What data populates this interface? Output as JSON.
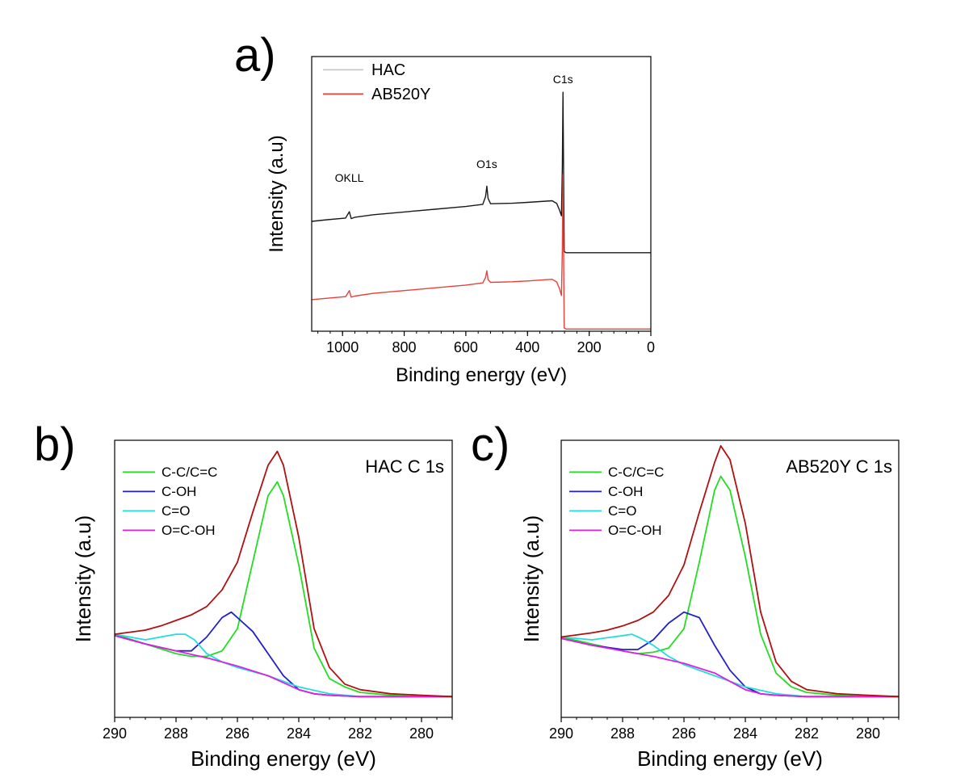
{
  "chart_data": [
    {
      "type": "line",
      "panel": "a)",
      "xlabel": "Binding energy (eV)",
      "ylabel": "Intensity (a.u)",
      "xlim": [
        1100,
        0
      ],
      "ylim": [
        0,
        100
      ],
      "x_reversed": true,
      "xticks": [
        "1000",
        "800",
        "600",
        "400",
        "200",
        "0"
      ],
      "legend": {
        "position": "top-left",
        "entries": [
          "HAC",
          "AB520Y"
        ]
      },
      "annotations": [
        {
          "text": "OKLL",
          "x": 978,
          "y": 52
        },
        {
          "text": "O1s",
          "x": 532,
          "y": 57
        },
        {
          "text": "C1s",
          "x": 285,
          "y": 88
        }
      ],
      "series": [
        {
          "name": "HAC",
          "color": "#1a1a1a",
          "x": [
            1100,
            1050,
            990,
            978,
            972,
            960,
            900,
            800,
            700,
            600,
            545,
            536,
            532,
            528,
            520,
            450,
            400,
            320,
            305,
            296,
            290,
            287,
            285,
            283,
            281,
            275,
            250,
            200,
            100,
            0
          ],
          "y": [
            40.0,
            40.6,
            41.2,
            43.5,
            41.0,
            41.5,
            42.4,
            43.4,
            44.4,
            45.4,
            46.2,
            49.0,
            52.8,
            48.4,
            46.4,
            46.6,
            46.9,
            47.5,
            46.5,
            44.0,
            42.0,
            60.0,
            87.0,
            60.0,
            29.0,
            28.6,
            28.6,
            28.6,
            28.6,
            28.6
          ]
        },
        {
          "name": "AB520Y",
          "color": "#e8413a",
          "x": [
            1100,
            1050,
            990,
            978,
            972,
            960,
            900,
            800,
            700,
            600,
            545,
            536,
            532,
            528,
            520,
            450,
            400,
            320,
            305,
            296,
            290,
            287,
            285,
            283,
            281,
            275,
            250,
            200,
            100,
            0
          ],
          "y": [
            11.5,
            12.0,
            12.6,
            14.8,
            12.4,
            12.8,
            13.8,
            14.8,
            15.8,
            16.8,
            17.6,
            19.6,
            22.0,
            18.8,
            17.8,
            18.0,
            18.3,
            18.9,
            17.9,
            15.4,
            13.0,
            30.0,
            57.0,
            30.0,
            1.2,
            0.8,
            0.8,
            0.8,
            0.8,
            0.8
          ]
        }
      ]
    },
    {
      "type": "line",
      "panel": "b)",
      "title": "HAC C 1s",
      "xlabel": "Binding energy (eV)",
      "ylabel": "Intensity (a.u)",
      "xlim": [
        290,
        279
      ],
      "ylim": [
        0,
        100
      ],
      "x_reversed": true,
      "xticks": [
        "290",
        "288",
        "286",
        "284",
        "282",
        "280"
      ],
      "legend": {
        "position": "top-left",
        "entries": [
          "C-C/C=C",
          "C-OH",
          "C=O",
          "O=C-OH"
        ]
      },
      "series": [
        {
          "name": "C-C/C=C",
          "color": "#22dd22",
          "x": [
            290,
            289,
            288,
            287.5,
            287,
            286.5,
            286,
            285.5,
            285,
            284.7,
            284.5,
            284,
            283.5,
            283,
            282.5,
            282,
            281,
            280,
            279
          ],
          "y": [
            30.0,
            26.5,
            23.0,
            22.0,
            22.0,
            24.0,
            32.0,
            56.0,
            80.0,
            85.0,
            80.0,
            55.0,
            25.0,
            14.0,
            11.0,
            9.0,
            8.0,
            7.5,
            7.5
          ]
        },
        {
          "name": "C-OH",
          "color": "#2020c8",
          "x": [
            290,
            289,
            288,
            287.5,
            287,
            286.5,
            286.2,
            286,
            285.5,
            285,
            284.5,
            284,
            283.5,
            283,
            282,
            281,
            280,
            279
          ],
          "y": [
            29.5,
            26.5,
            24.0,
            24.0,
            29.0,
            36.0,
            38.0,
            36.0,
            31.0,
            23.0,
            15.0,
            10.0,
            8.5,
            8.0,
            7.5,
            7.5,
            7.5,
            7.5
          ]
        },
        {
          "name": "C=O",
          "color": "#22dddd",
          "x": [
            290,
            289,
            288.5,
            288,
            287.7,
            287.4,
            287,
            286.5,
            286,
            285,
            284,
            283,
            282,
            281,
            280,
            279
          ],
          "y": [
            30.0,
            28.0,
            29.0,
            30.0,
            30.0,
            28.0,
            23.0,
            20.0,
            18.0,
            15.0,
            11.0,
            8.5,
            7.5,
            7.5,
            7.5,
            7.5
          ]
        },
        {
          "name": "O=C-OH",
          "color": "#e020e0",
          "x": [
            290,
            289,
            288,
            287,
            286,
            285,
            284.5,
            284,
            283.5,
            283,
            282,
            281,
            280,
            279
          ],
          "y": [
            29.5,
            26.5,
            24.0,
            21.5,
            18.5,
            15.0,
            12.5,
            10.0,
            8.5,
            8.0,
            7.5,
            7.5,
            7.5,
            7.5
          ]
        },
        {
          "name": "",
          "color": "#b01010",
          "x": [
            290,
            289,
            288.5,
            288,
            287.5,
            287,
            286.5,
            286,
            285.5,
            285,
            284.7,
            284.5,
            284,
            283.5,
            283,
            282.5,
            282,
            281,
            280,
            279
          ],
          "y": [
            30.0,
            31.5,
            33.0,
            35.0,
            37.0,
            40.0,
            46.0,
            56.0,
            74.0,
            91.0,
            96.0,
            91.0,
            65.0,
            32.0,
            18.0,
            12.0,
            10.0,
            8.5,
            8.0,
            7.5
          ]
        }
      ]
    },
    {
      "type": "line",
      "panel": "c)",
      "title": "AB520Y C 1s",
      "xlabel": "Binding energy (eV)",
      "ylabel": "Intensity (a.u)",
      "xlim": [
        290,
        279
      ],
      "ylim": [
        0,
        100
      ],
      "x_reversed": true,
      "xticks": [
        "290",
        "288",
        "286",
        "284",
        "282",
        "280"
      ],
      "legend": {
        "position": "top-left",
        "entries": [
          "C-C/C=C",
          "C-OH",
          "C=O",
          "O=C-OH"
        ]
      },
      "series": [
        {
          "name": "C-C/C=C",
          "color": "#22dd22",
          "x": [
            290,
            289,
            288,
            287.5,
            287,
            286.5,
            286,
            285.5,
            285,
            284.8,
            284.5,
            284,
            283.5,
            283,
            282.5,
            282,
            281,
            280,
            279
          ],
          "y": [
            29.0,
            26.5,
            24.0,
            23.0,
            23.5,
            25.0,
            32.0,
            56.0,
            82.0,
            87.0,
            82.0,
            58.0,
            30.0,
            16.0,
            11.0,
            9.0,
            8.0,
            7.5,
            7.5
          ]
        },
        {
          "name": "C-OH",
          "color": "#2020c8",
          "x": [
            290,
            289,
            288,
            287.5,
            287,
            286.5,
            286,
            285.5,
            285,
            284.5,
            284,
            283.5,
            283,
            282,
            281,
            280,
            279
          ],
          "y": [
            28.5,
            26.0,
            24.5,
            24.5,
            28.0,
            34.0,
            38.0,
            36.0,
            26.0,
            17.0,
            11.0,
            8.5,
            8.0,
            7.5,
            7.5,
            7.5,
            7.5
          ]
        },
        {
          "name": "C=O",
          "color": "#22dddd",
          "x": [
            290,
            289,
            288,
            287.7,
            287.4,
            287,
            286.5,
            286,
            285,
            284,
            283,
            282,
            281,
            280,
            279
          ],
          "y": [
            29.0,
            28.0,
            29.5,
            30.0,
            28.5,
            26.0,
            22.0,
            19.0,
            15.0,
            11.0,
            8.5,
            7.5,
            7.5,
            7.5,
            7.5
          ]
        },
        {
          "name": "O=C-OH",
          "color": "#e020e0",
          "x": [
            290,
            289,
            288,
            287,
            286,
            285,
            284.5,
            284,
            283.5,
            283,
            282,
            281,
            280,
            279
          ],
          "y": [
            28.5,
            26.0,
            24.0,
            22.0,
            19.5,
            16.0,
            13.0,
            10.0,
            8.5,
            8.0,
            7.5,
            7.5,
            7.5,
            7.5
          ]
        },
        {
          "name": "",
          "color": "#b01010",
          "x": [
            290,
            289,
            288.5,
            288,
            287.5,
            287,
            286.5,
            286,
            285.5,
            285,
            284.8,
            284.5,
            284,
            283.5,
            283,
            282.5,
            282,
            281,
            280,
            279
          ],
          "y": [
            29.0,
            30.5,
            31.5,
            33.0,
            35.0,
            38.0,
            44.0,
            55.0,
            74.0,
            92.0,
            98.0,
            93.0,
            70.0,
            38.0,
            20.0,
            13.0,
            10.0,
            8.5,
            8.0,
            7.5
          ]
        }
      ]
    }
  ]
}
